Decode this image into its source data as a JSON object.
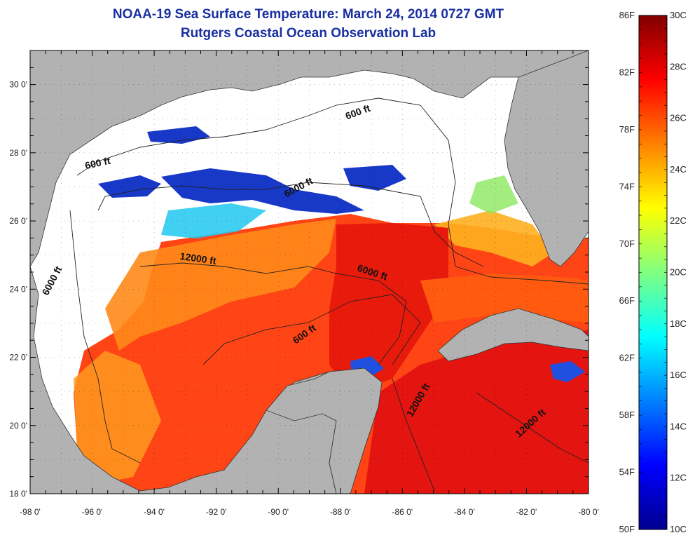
{
  "title": {
    "line1": "NOAA-19 Sea Surface Temperature:  March 24, 2014 0727 GMT",
    "line2": "Rutgers Coastal Ocean Observation Lab"
  },
  "map": {
    "lon_range": [
      -98,
      -80
    ],
    "lat_range": [
      18,
      31
    ],
    "x_ticks": [
      {
        "lon": -98,
        "label": "-98 0'"
      },
      {
        "lon": -96,
        "label": "-96 0'"
      },
      {
        "lon": -94,
        "label": "-94 0'"
      },
      {
        "lon": -92,
        "label": "-92 0'"
      },
      {
        "lon": -90,
        "label": "-90 0'"
      },
      {
        "lon": -88,
        "label": "-88 0'"
      },
      {
        "lon": -86,
        "label": "-86 0'"
      },
      {
        "lon": -84,
        "label": "-84 0'"
      },
      {
        "lon": -82,
        "label": "-82 0'"
      },
      {
        "lon": -80,
        "label": "-80 0'"
      }
    ],
    "y_ticks": [
      {
        "lat": 30,
        "label": "30 0'"
      },
      {
        "lat": 28,
        "label": "28 0'"
      },
      {
        "lat": 26,
        "label": "26 0'"
      },
      {
        "lat": 24,
        "label": "24 0'"
      },
      {
        "lat": 22,
        "label": "22 0'"
      },
      {
        "lat": 20,
        "label": "20 0'"
      },
      {
        "lat": 18,
        "label": "18 0'"
      }
    ],
    "contour_labels": [
      {
        "text": "600 ft",
        "lon": -87.4,
        "lat": 29.1,
        "rotate": -20
      },
      {
        "text": "600 ft",
        "lon": -95.8,
        "lat": 27.6,
        "rotate": -12
      },
      {
        "text": "6000 ft",
        "lon": -89.3,
        "lat": 26.9,
        "rotate": -28
      },
      {
        "text": "12000 ft",
        "lon": -92.6,
        "lat": 24.8,
        "rotate": 8
      },
      {
        "text": "6000 ft",
        "lon": -87.0,
        "lat": 24.4,
        "rotate": 18
      },
      {
        "text": "6000 ft",
        "lon": -97.2,
        "lat": 24.2,
        "rotate": -62
      },
      {
        "text": "600 ft",
        "lon": -89.1,
        "lat": 22.6,
        "rotate": -35
      },
      {
        "text": "12000 ft",
        "lon": -85.4,
        "lat": 20.7,
        "rotate": -60
      },
      {
        "text": "12000 ft",
        "lon": -81.8,
        "lat": 20.0,
        "rotate": -42
      }
    ]
  },
  "colorbar": {
    "min_c": 10,
    "max_c": 30,
    "left_labels": [
      "86F",
      "82F",
      "78F",
      "74F",
      "70F",
      "66F",
      "62F",
      "58F",
      "54F",
      "50F"
    ],
    "left_values_f": [
      86,
      82,
      78,
      74,
      70,
      66,
      62,
      58,
      54,
      50
    ],
    "right_labels": [
      "30C",
      "28C",
      "26C",
      "24C",
      "22C",
      "20C",
      "18C",
      "16C",
      "14C",
      "12C",
      "10C"
    ],
    "right_values_c": [
      30,
      28,
      26,
      24,
      22,
      20,
      18,
      16,
      14,
      12,
      10
    ],
    "colors": [
      "#00008f",
      "#0000ff",
      "#0080ff",
      "#00ffff",
      "#80ff80",
      "#ffff00",
      "#ff8000",
      "#ff0000",
      "#800000"
    ]
  },
  "legend_colors": {
    "land": "#b2b2b2",
    "cloud": "#ffffff",
    "cold_cloud_edge": "#1030c0",
    "warm_water": "#ff3a10",
    "hot_water": "#e81010"
  }
}
